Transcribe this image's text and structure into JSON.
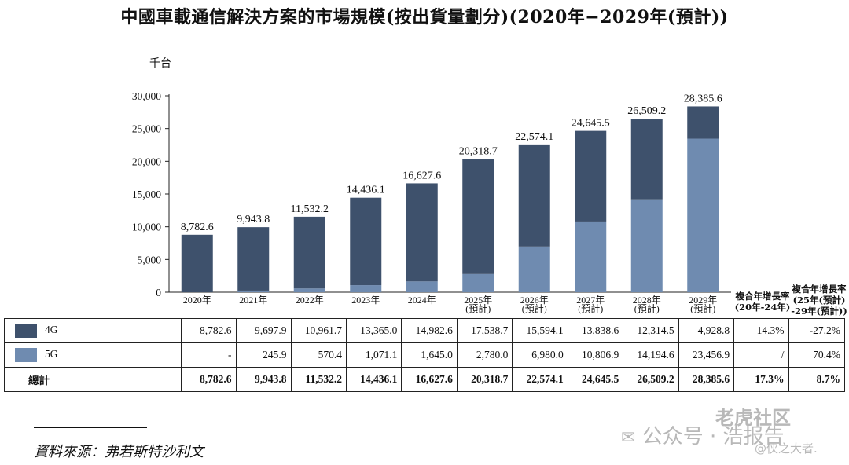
{
  "title": "中國車載通信解決方案的市場規模(按出貨量劃分)(2020年−2029年(預計))",
  "unit_label": "千台",
  "cagr_headers": {
    "hist": [
      "複合年增長率",
      "(20年-24年)"
    ],
    "fore": [
      "複合年增長率",
      "(25年(預計)",
      "-29年(預計))"
    ]
  },
  "table": {
    "rows": [
      {
        "label": "4G",
        "values": [
          "8,782.6",
          "9,697.9",
          "10,961.7",
          "13,365.0",
          "14,982.6",
          "17,538.7",
          "15,594.1",
          "13,838.6",
          "12,314.5",
          "4,928.8"
        ],
        "cagr_hist": "14.3%",
        "cagr_fore": "-27.2%"
      },
      {
        "label": "5G",
        "values": [
          "-",
          "245.9",
          "570.4",
          "1,071.1",
          "1,645.0",
          "2,780.0",
          "6,980.0",
          "10,806.9",
          "14,194.6",
          "23,456.9"
        ],
        "cagr_hist": "/",
        "cagr_fore": "70.4%"
      },
      {
        "label": "總計",
        "values": [
          "8,782.6",
          "9,943.8",
          "11,532.2",
          "14,436.1",
          "16,627.6",
          "20,318.7",
          "22,574.1",
          "24,645.5",
          "26,509.2",
          "28,385.6"
        ],
        "cagr_hist": "17.3%",
        "cagr_fore": "8.7%"
      }
    ]
  },
  "source": "資料來源：弗若斯特沙利文",
  "watermark": {
    "main": "公众号 · 浩报告",
    "sub": "@侠之大者.",
    "corner": "老虎社区"
  },
  "chart_data": {
    "type": "bar",
    "stacked": true,
    "title": "中國車載通信解決方案的市場規模(按出貨量劃分)(2020年−2029年(預計))",
    "ylabel": "千台",
    "ylim": [
      0,
      30000
    ],
    "yticks": [
      "0",
      "5,000",
      "10,000",
      "15,000",
      "20,000",
      "25,000",
      "30,000"
    ],
    "ytick_values": [
      0,
      5000,
      10000,
      15000,
      20000,
      25000,
      30000
    ],
    "categories": [
      [
        "2020年"
      ],
      [
        "2021年"
      ],
      [
        "2022年"
      ],
      [
        "2023年"
      ],
      [
        "2024年"
      ],
      [
        "2025年",
        "(預計)"
      ],
      [
        "2026年",
        "(預計)"
      ],
      [
        "2027年",
        "(預計)"
      ],
      [
        "2028年",
        "(預計)"
      ],
      [
        "2029年",
        "(預計)"
      ]
    ],
    "series": [
      {
        "name": "5G",
        "color": "#6f8bb0",
        "values": [
          0,
          245.9,
          570.4,
          1071.1,
          1645.0,
          2780.0,
          6980.0,
          10806.9,
          14194.6,
          23456.9
        ]
      },
      {
        "name": "4G",
        "color": "#3e516c",
        "values": [
          8782.6,
          9697.9,
          10961.7,
          13365.0,
          14982.6,
          17538.7,
          15594.1,
          13838.6,
          12314.5,
          4928.8
        ]
      }
    ],
    "totals": [
      8782.6,
      9943.8,
      11532.2,
      14436.1,
      16627.6,
      20318.7,
      22574.1,
      24645.5,
      26509.2,
      28385.6
    ],
    "total_labels": [
      "8,782.6",
      "9,943.8",
      "11,532.2",
      "14,436.1",
      "16,627.6",
      "20,318.7",
      "22,574.1",
      "24,645.5",
      "26,509.2",
      "28,385.6"
    ]
  }
}
